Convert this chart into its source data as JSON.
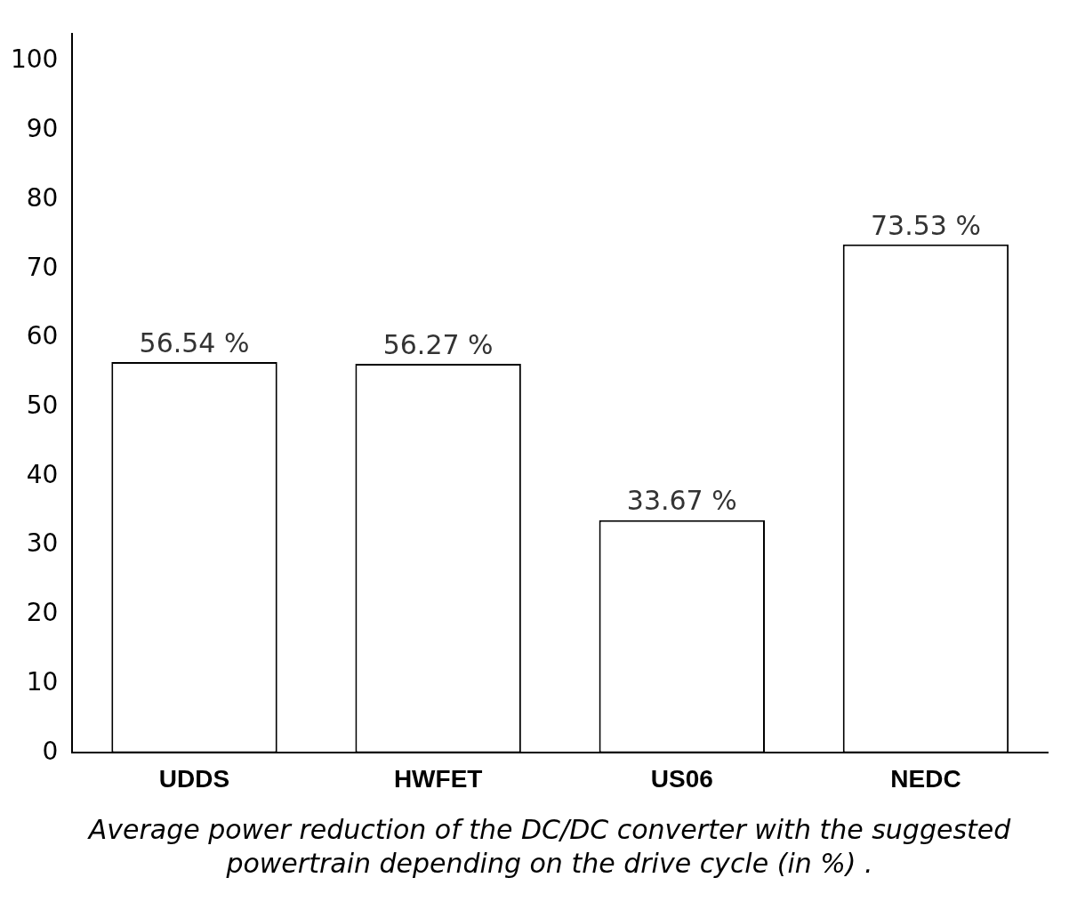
{
  "chart_data": {
    "type": "bar",
    "categories": [
      "UDDS",
      "HWFET",
      "US06",
      "NEDC"
    ],
    "series": [
      {
        "color": "#ffffff",
        "values": [
          56.54,
          56.27,
          33.67,
          73.53
        ],
        "value_labels": [
          "56.54 %",
          "56.27 %",
          "33.67 %",
          "73.53 %"
        ]
      }
    ],
    "ylim": [
      0,
      104
    ],
    "yticks": [
      0,
      10,
      20,
      30,
      40,
      50,
      60,
      70,
      80,
      90,
      100
    ],
    "grid": false,
    "legend": false,
    "annotations": [
      "Average power reduction of the DC/DC converter with the suggested powertrain depending on the drive cycle (in %) ."
    ]
  }
}
